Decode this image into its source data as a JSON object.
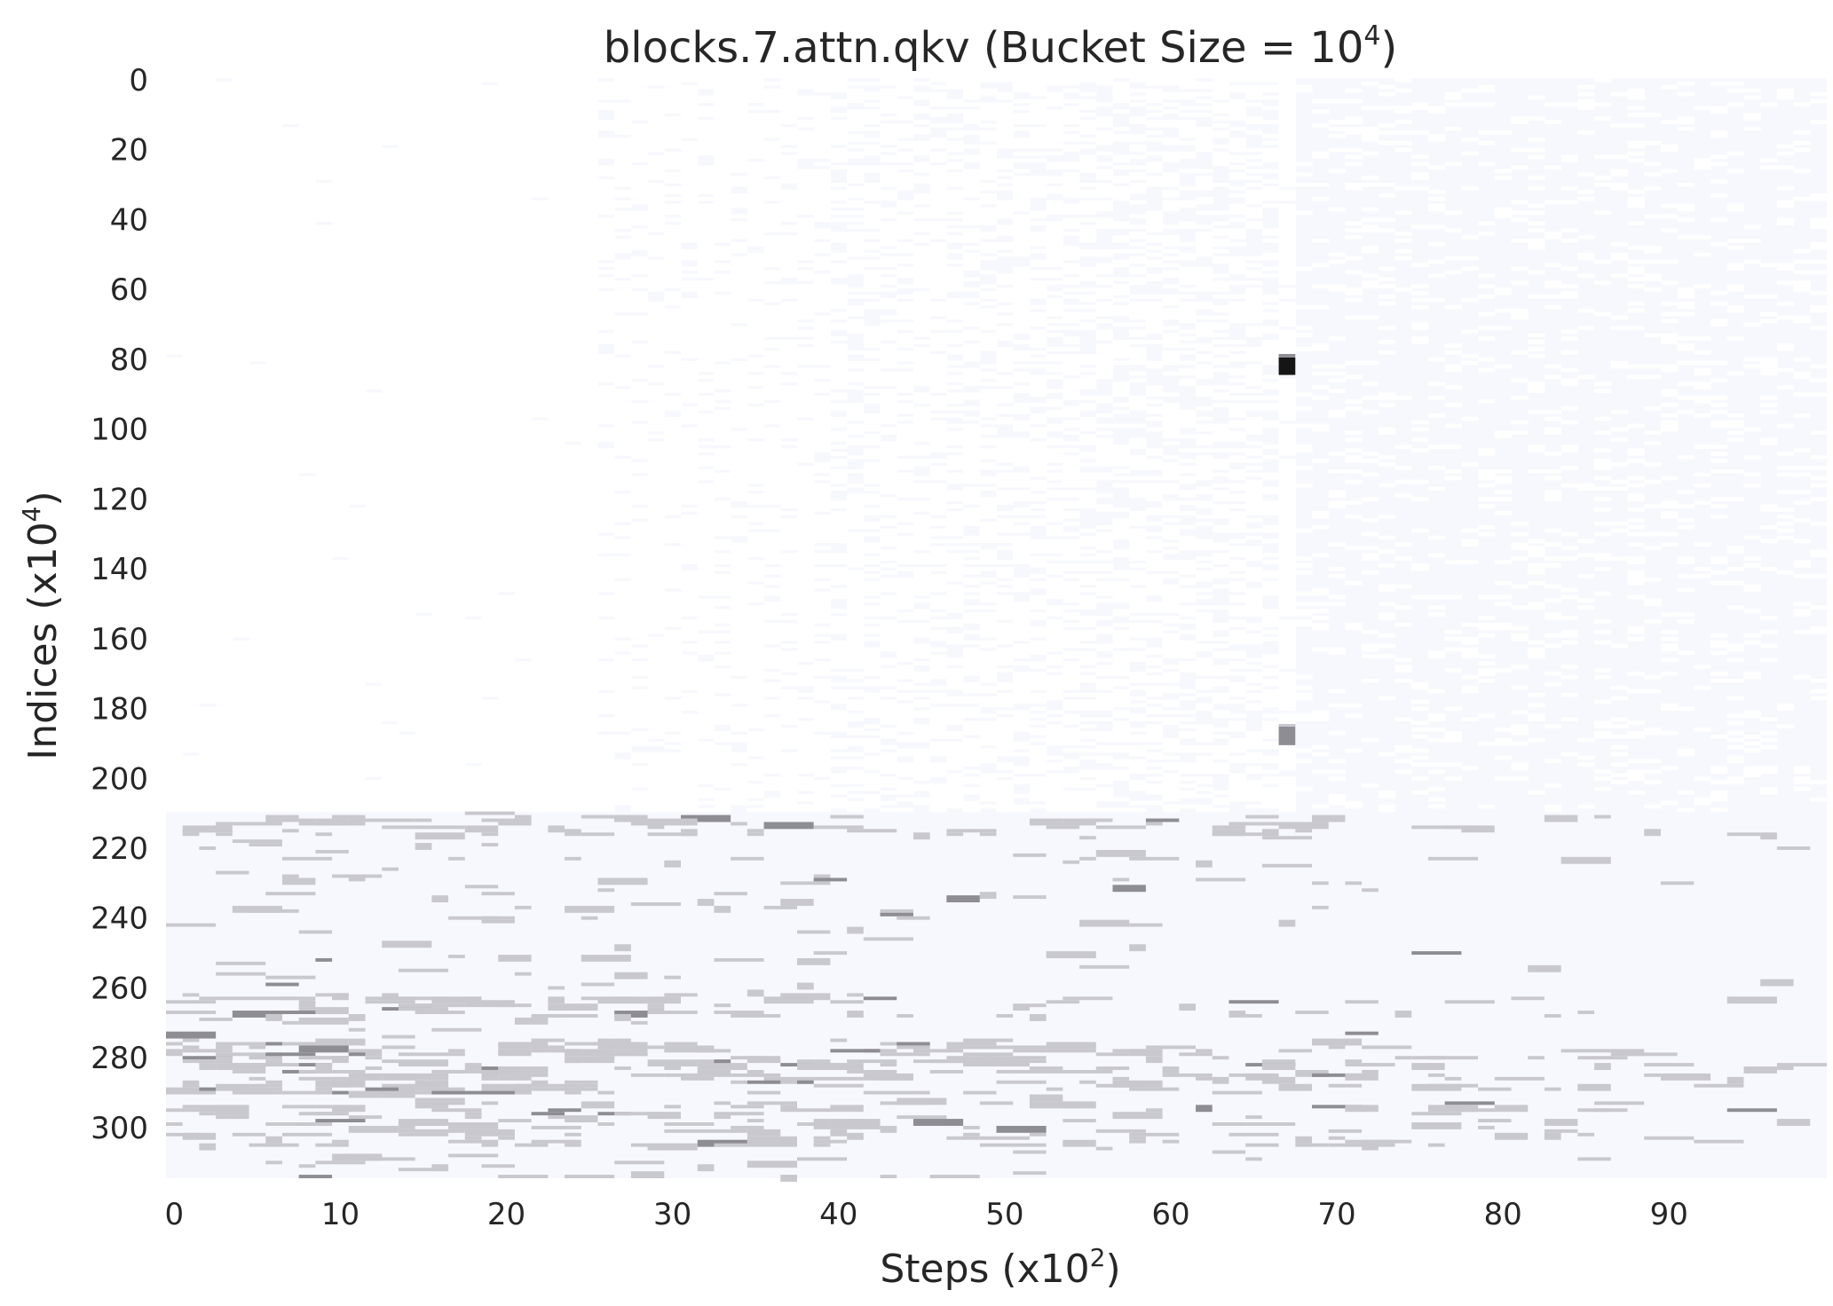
{
  "chart_data": {
    "type": "heatmap",
    "title": "blocks.7.attn.qkv (Bucket Size = 10⁴)",
    "title_main": "blocks.7.attn.qkv (Bucket Size = 10",
    "title_sup": "4",
    "title_end": ")",
    "xlabel_main": "Steps (x10",
    "xlabel_sup": "2",
    "xlabel_end": ")",
    "ylabel_main": "Indices (x10",
    "ylabel_sup": "4",
    "ylabel_end": ")",
    "x_range": [
      0,
      100
    ],
    "y_range": [
      0,
      315
    ],
    "x_ticks": [
      0,
      10,
      20,
      30,
      40,
      50,
      60,
      70,
      80,
      90
    ],
    "y_ticks": [
      0,
      20,
      40,
      60,
      80,
      100,
      120,
      140,
      160,
      180,
      200,
      220,
      240,
      260,
      280,
      300
    ],
    "y_inverted": true,
    "grid": false,
    "colors": {
      "background": "#f7f8fd",
      "empty": "#ffffff",
      "low": "#c9c8ce",
      "mid": "#8e8d93",
      "high": "#151515"
    },
    "regions": [
      {
        "y": [
          0,
          210
        ],
        "dominant": "empty/background mix"
      },
      {
        "y": [
          210,
          315
        ],
        "dominant": "background with sparse grey cells"
      }
    ],
    "hotspots": [
      {
        "x": 67,
        "y": [
          80,
          85
        ],
        "level": "high"
      },
      {
        "x": 67,
        "y": [
          185,
          191
        ],
        "level": "mid"
      }
    ]
  }
}
